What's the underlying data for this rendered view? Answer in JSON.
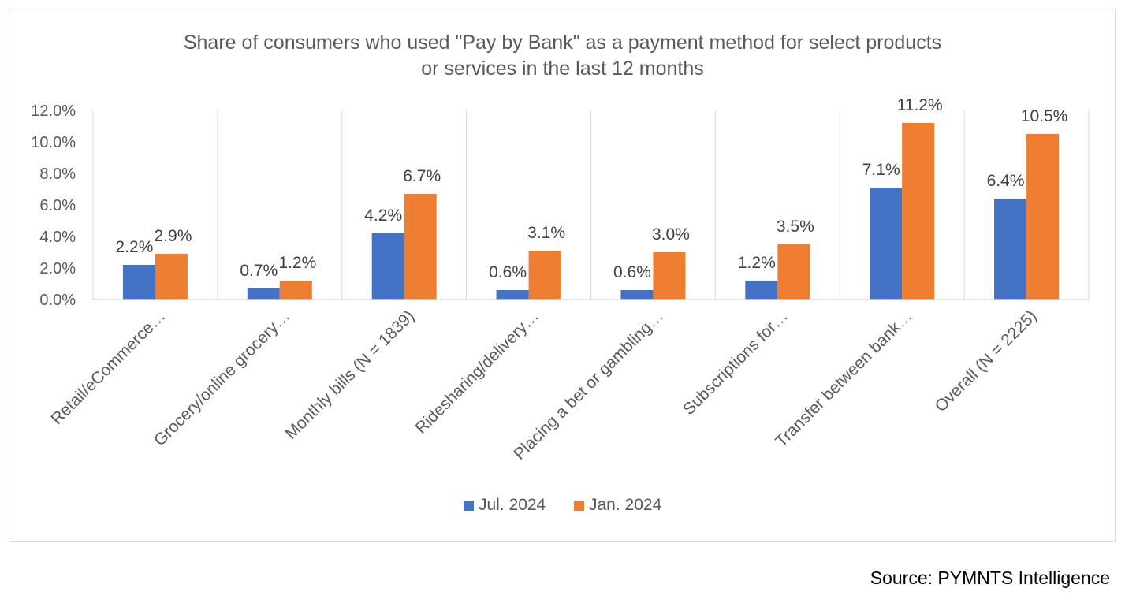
{
  "chart_data": {
    "type": "bar",
    "title_lines": [
      "Share of consumers who used \"Pay by Bank\" as a payment method for select products",
      "or services in the last 12 months"
    ],
    "categories": [
      "Retail/eCommerce…",
      "Grocery/online grocery…",
      "Monthly bills (N = 1839)",
      "Ridesharing/delivery…",
      "Placing a bet or gambling…",
      "Subscriptions for…",
      "Transfer between bank…",
      "Overall (N = 2225)"
    ],
    "series": [
      {
        "name": "Jul. 2024",
        "color": "#4472c4",
        "values": [
          2.2,
          0.7,
          4.2,
          0.6,
          0.6,
          1.2,
          7.1,
          6.4
        ],
        "labels": [
          "2.2%",
          "0.7%",
          "4.2%",
          "0.6%",
          "0.6%",
          "1.2%",
          "7.1%",
          "6.4%"
        ]
      },
      {
        "name": "Jan. 2024",
        "color": "#ed7d31",
        "values": [
          2.9,
          1.2,
          6.7,
          3.1,
          3.0,
          3.5,
          11.2,
          10.5
        ],
        "labels": [
          "2.9%",
          "1.2%",
          "6.7%",
          "3.1%",
          "3.0%",
          "3.5%",
          "11.2%",
          "10.5%"
        ]
      }
    ],
    "ylim": [
      0,
      12
    ],
    "y_ticks": [
      0,
      2,
      4,
      6,
      8,
      10,
      12
    ],
    "y_tick_labels": [
      "0.0%",
      "2.0%",
      "4.0%",
      "6.0%",
      "8.0%",
      "10.0%",
      "12.0%"
    ],
    "grid": "vertical separators between categories",
    "legend_position": "bottom"
  },
  "source": "Source: PYMNTS Intelligence"
}
